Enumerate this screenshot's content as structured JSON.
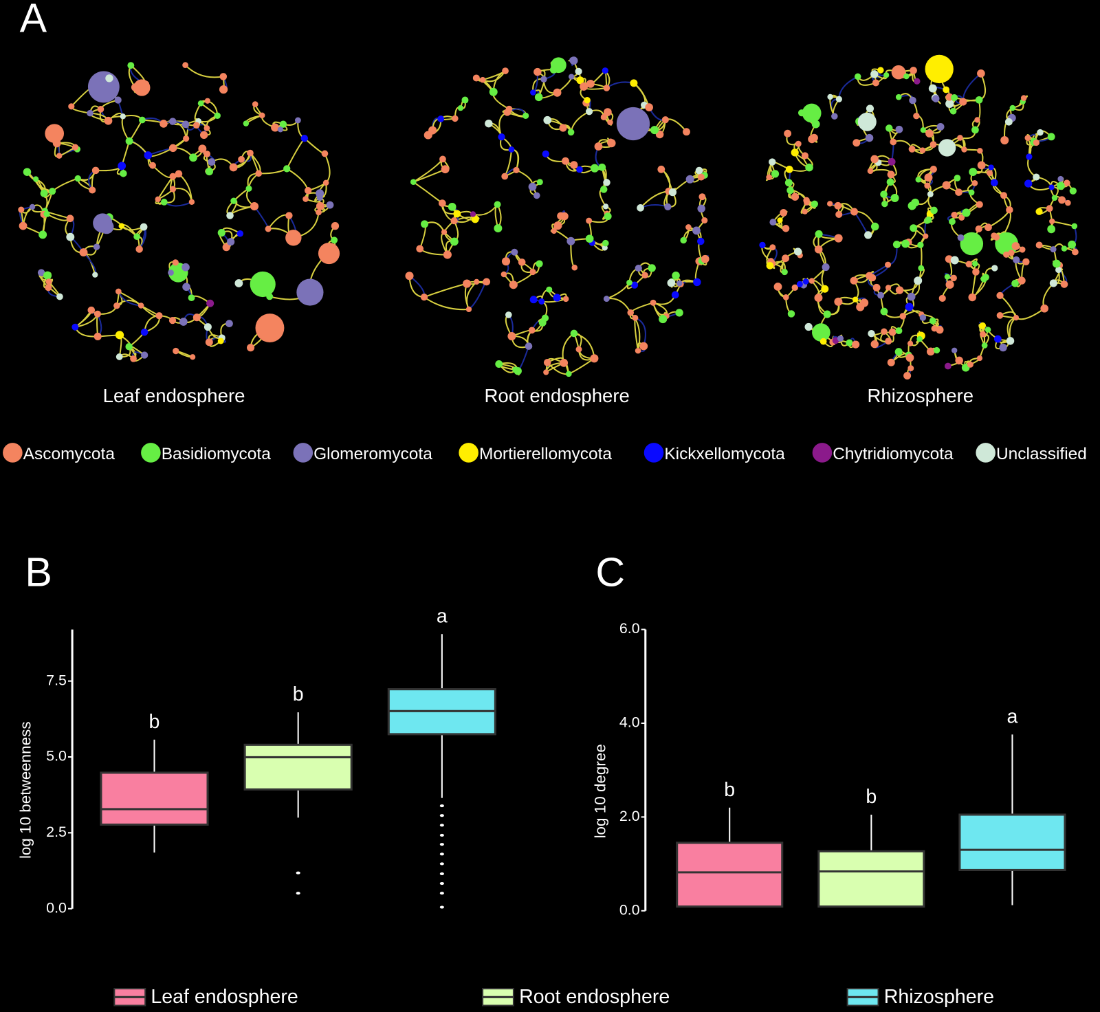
{
  "network_panel": {
    "label": "A",
    "networks": [
      "Leaf endosphere",
      "Root endosphere",
      "Rhizosphere"
    ],
    "legend": [
      {
        "name": "Ascomycota",
        "color": "#f4845f"
      },
      {
        "name": "Basidiomycota",
        "color": "#66ee44"
      },
      {
        "name": "Glomeromycota",
        "color": "#7b72b8"
      },
      {
        "name": "Mortierellomycota",
        "color": "#ffee00"
      },
      {
        "name": "Kickxellomycota",
        "color": "#0a0aff"
      },
      {
        "name": "Chytridiomycota",
        "color": "#8b1a8b"
      },
      {
        "name": "Unclassified",
        "color": "#cfe8d8"
      }
    ]
  },
  "chart_data": [
    {
      "type": "box",
      "panel_label": "B",
      "y_label": "log 10 betweenness",
      "ylim": [
        0,
        9.2
      ],
      "yticks": [
        {
          "value": 0,
          "label": "0.0"
        },
        2.5,
        {
          "value": 5,
          "label": "5.0"
        },
        7.5
      ],
      "series": [
        {
          "name": "Leaf endosphere",
          "color": "#f97fa0",
          "whisker_low": 1.85,
          "q1": 2.77,
          "median": 3.28,
          "q3": 4.48,
          "whisker_high": 5.57,
          "outliers": [],
          "letter": "b"
        },
        {
          "name": "Root endosphere",
          "color": "#d9ffb0",
          "whisker_low": 3.0,
          "q1": 3.93,
          "median": 4.99,
          "q3": 5.4,
          "whisker_high": 6.47,
          "outliers": [
            1.18,
            0.51
          ],
          "letter": "b"
        },
        {
          "name": "Rhizosphere",
          "color": "#6ee7f0",
          "whisker_low": 3.65,
          "q1": 5.75,
          "median": 6.51,
          "q3": 7.23,
          "whisker_high": 9.05,
          "outliers": [
            3.39,
            3.07,
            2.75,
            2.42,
            2.12,
            1.8,
            1.48,
            1.15,
            0.83,
            0.51,
            0.05
          ],
          "letter": "a"
        }
      ]
    },
    {
      "type": "box",
      "panel_label": "C",
      "y_label": "log 10 degree",
      "ylim": [
        0,
        6
      ],
      "yticks": [
        {
          "value": 0,
          "label": "0.0"
        },
        {
          "value": 2,
          "label": "2.0"
        },
        {
          "value": 4,
          "label": "4.0"
        },
        {
          "value": 6,
          "label": "6.0"
        }
      ],
      "series": [
        {
          "color": "#f97fa0",
          "whisker_low": 0.09,
          "q1": 0.09,
          "median": 0.82,
          "q3": 1.45,
          "whisker_high": 2.2,
          "outliers": [],
          "letter": "b"
        },
        {
          "color": "#d9ffb0",
          "whisker_low": 0.09,
          "q1": 0.09,
          "median": 0.84,
          "q3": 1.27,
          "whisker_high": 2.05,
          "outliers": [],
          "letter": "b"
        },
        {
          "color": "#6ee7f0",
          "whisker_low": 0.12,
          "q1": 0.87,
          "median": 1.3,
          "q3": 2.05,
          "whisker_high": 3.76,
          "outliers": [],
          "letter": "a"
        }
      ]
    }
  ]
}
